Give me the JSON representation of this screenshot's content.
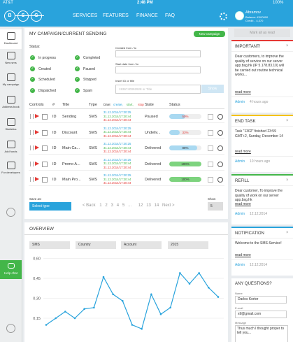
{
  "status_bar": {
    "carrier": "AT&T",
    "time": "2:48 PM",
    "battery": "100%"
  },
  "header": {
    "logo": [
      "B",
      "S",
      "G"
    ],
    "menu": [
      "SERVICES",
      "FEATURES",
      "FINANCE",
      "FAQ"
    ],
    "user": {
      "name": "Abramov",
      "balance": "Balance: £000000",
      "credit": "Credit: - 4,370"
    }
  },
  "sidebar": [
    "Dashboard",
    "New sms",
    "My campaign",
    "Address book",
    "Statistics",
    "Add funds",
    "For developers"
  ],
  "help_chat": "Help chat",
  "campaign": {
    "title": "MY CAMPAIGN/CURRENT SENDING",
    "new_button": "New campaign",
    "status_label": "Status:",
    "statuses": [
      "In progress",
      "Completed",
      "Created",
      "Paused",
      "Scheduled",
      "Stopped",
      "Dispatched",
      "Spam"
    ],
    "filters": {
      "created": "Created from / to",
      "start": "Start date from / to",
      "search": "Insert ID or title",
      "placeholder": "1936740092928 or Title",
      "show": "Show"
    },
    "columns": [
      "Controls",
      "#",
      "Title",
      "Type",
      "State",
      "Status"
    ],
    "date_header": [
      "Date:",
      "create,",
      "start,",
      "stop"
    ],
    "rows": [
      {
        "id": "ID",
        "title": "Sending",
        "type": "SMS",
        "dates": [
          "31.12.2014/17:30:25",
          "31.12.2014/17:30:44",
          "31.12.2014/17:30:44"
        ],
        "state": "Paused",
        "status": "50%"
      },
      {
        "id": "ID",
        "title": "Discount",
        "type": "SMS",
        "dates": [
          "31.12.2014/17:30:25",
          "31.12.2014/17:30:44",
          "31.12.2014/17:30:44"
        ],
        "state": "Undeliv...",
        "status": "33%"
      },
      {
        "id": "ID",
        "title": "Main Ca...",
        "type": "SMS",
        "dates": [
          "31.12.2014/17:30:25",
          "31.12.2014/17:30:44",
          "31.12.2014/17:30:44"
        ],
        "state": "Delivered",
        "status": "88%"
      },
      {
        "id": "ID",
        "title": "Promo A...",
        "type": "SMS",
        "dates": [
          "31.12.2014/17:30:25",
          "31.12.2014/17:30:44",
          "31.12.2014/17:30:44"
        ],
        "state": "Delivered",
        "status": "100%"
      },
      {
        "id": "ID",
        "title": "Main Pro...",
        "type": "SMS",
        "dates": [
          "31.12.2014/17:30:25",
          "31.12.2014/17:30:44",
          "31.12.2014/17:30:44"
        ],
        "state": "Delivered",
        "status": "100%"
      }
    ],
    "save_as": "Save as:",
    "select_type": "Select type",
    "pagination": [
      "< Back",
      "1",
      "2",
      "3",
      "4",
      "5",
      "...",
      "12",
      "13",
      "14",
      "Next >"
    ],
    "show_label": "Show",
    "show_value": "5"
  },
  "overview": {
    "title": "OVERVIEW",
    "filters": [
      "SMS",
      "Country",
      "Account",
      "2015"
    ]
  },
  "chart_data": {
    "type": "line",
    "categories": [
      null,
      null,
      null,
      null,
      null,
      null,
      null,
      null,
      null,
      null,
      null,
      null,
      null,
      null,
      null,
      null,
      null,
      null,
      null
    ],
    "series": [
      {
        "color": "#29a3dc",
        "values": [
          0.1,
          0.15,
          0.2,
          0.15,
          0.22,
          0.23,
          0.46,
          0.33,
          0.28,
          0.1,
          0.07,
          0.33,
          0.18,
          0.23,
          0.49,
          0.41,
          0.49,
          0.38,
          0.31
        ]
      }
    ],
    "ylim": [
      0,
      0.65
    ],
    "yticks": [
      {
        "value": 0.15,
        "label": "0,15"
      },
      {
        "value": 0.3,
        "label": "0,30"
      },
      {
        "value": 0.45,
        "label": "0,45"
      },
      {
        "value": 0.6,
        "label": "0,60"
      }
    ],
    "grid": true
  },
  "notifications": {
    "mark_all": "Mark all as read",
    "items": [
      {
        "title": "IMPORTANT!",
        "color": "#e53935",
        "body": "Dear customers, to improve the quality of service on our server app.bsg.hk (IP 5.178.83.10) will be carried out routine technical works...",
        "read_more": "read more",
        "author": "Admin",
        "time": "4 hours ago"
      },
      {
        "title": "END TASK",
        "color": "#f4c20d",
        "body": "Task \"1302\" finished 23:59 GMT+2, Sunday, December 14",
        "read_more": "read more",
        "author": "Admin",
        "time": "10 hours ago"
      },
      {
        "title": "REFILL",
        "color": "#43b649",
        "body": "Dear customer, To improve the quality of work on our server app.bsg.hk",
        "read_more": "read more",
        "author": "Admin",
        "time": "12.12.2014"
      },
      {
        "title": "NOTIFICATION",
        "color": "#29a3dc",
        "body": "Welcome to the SMS-Service!",
        "read_more": "read more",
        "author": "Admin",
        "time": "12.12.2014"
      }
    ]
  },
  "questions": {
    "title": "ANY QUESTIONS?",
    "name_label": "Name",
    "name": "Darlos Korter",
    "email_label": "E-mail",
    "email": "xtf@gmail.com",
    "message_label": "Message",
    "message": "Thus much I thought proper to tell you..."
  }
}
